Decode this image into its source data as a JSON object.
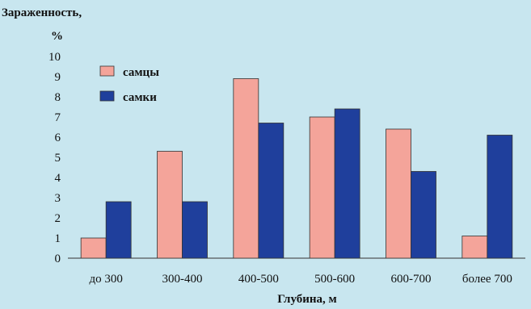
{
  "chart_data": {
    "type": "bar",
    "ylabel_line1": "Зараженность,",
    "ylabel_line2": "%",
    "xlabel": "Глубина, м",
    "categories": [
      "до 300",
      "300-400",
      "400-500",
      "500-600",
      "600-700",
      "более 700"
    ],
    "series": [
      {
        "name": "самцы",
        "color": "#f4a49a",
        "values": [
          1.0,
          5.3,
          8.9,
          7.0,
          6.4,
          1.1
        ]
      },
      {
        "name": "самки",
        "color": "#1f3f9c",
        "values": [
          2.8,
          2.8,
          6.7,
          7.4,
          4.3,
          6.1
        ]
      }
    ],
    "ylim": [
      0,
      10
    ],
    "yticks": [
      "0",
      "1",
      "2",
      "3",
      "4",
      "5",
      "6",
      "7",
      "8",
      "9",
      "10"
    ],
    "legend_position": "top-left",
    "grid": false
  }
}
